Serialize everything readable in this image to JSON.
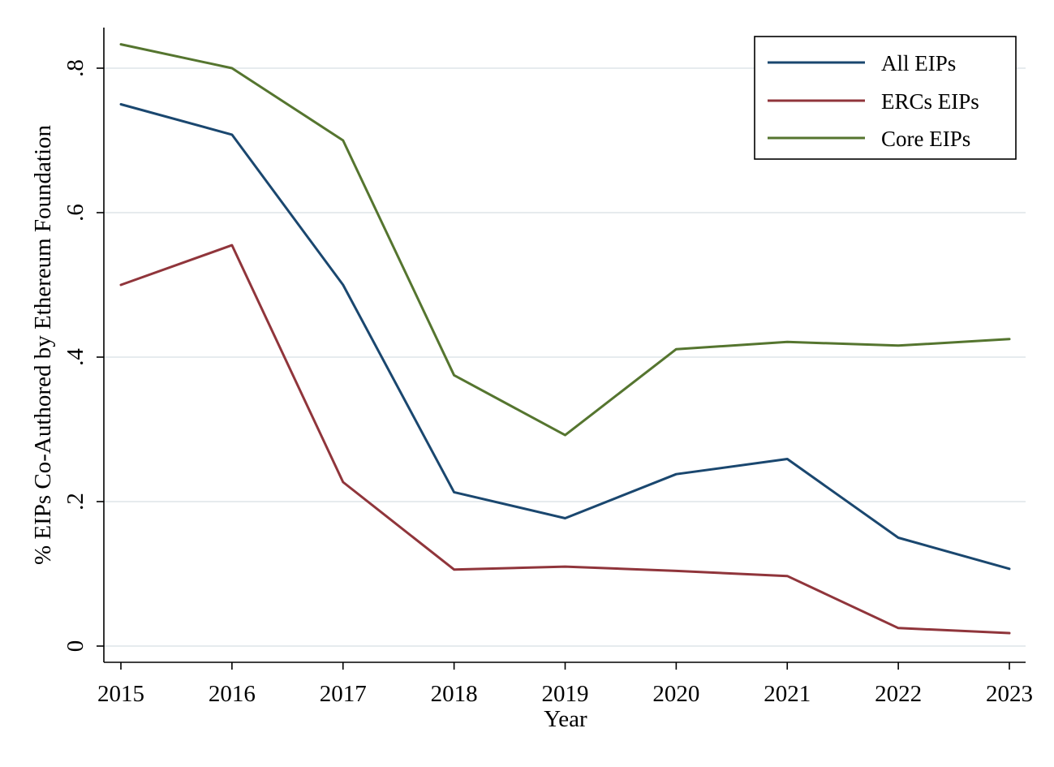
{
  "chart_data": {
    "type": "line",
    "xlabel": "Year",
    "ylabel": "% EIPs Co-Authored by Ethereum Foundation",
    "x": [
      2015,
      2016,
      2017,
      2018,
      2019,
      2020,
      2021,
      2022,
      2023
    ],
    "y_ticks": [
      0,
      0.2,
      0.4,
      0.6,
      0.8
    ],
    "y_tick_labels": [
      "0",
      ".2",
      ".4",
      ".6",
      ".8"
    ],
    "ylim": [
      -0.025,
      0.855
    ],
    "xlim": [
      2014.85,
      2023.15
    ],
    "grid": true,
    "legend_position": "top-right",
    "series": [
      {
        "name": "All EIPs",
        "color": "#1a476f",
        "values": [
          0.75,
          0.708,
          0.5,
          0.213,
          0.177,
          0.238,
          0.259,
          0.15,
          0.107
        ]
      },
      {
        "name": "ERCs EIPs",
        "color": "#90353b",
        "values": [
          0.5,
          0.555,
          0.227,
          0.106,
          0.11,
          0.104,
          0.097,
          0.025,
          0.018
        ]
      },
      {
        "name": "Core EIPs",
        "color": "#55752f",
        "values": [
          0.833,
          0.8,
          0.7,
          0.375,
          0.292,
          0.411,
          0.421,
          0.416,
          0.425
        ]
      }
    ]
  }
}
